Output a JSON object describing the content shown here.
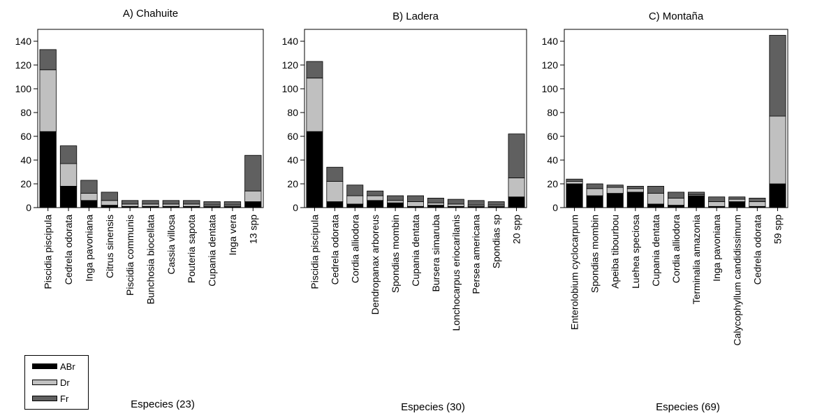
{
  "colors": {
    "ABr": "#000000",
    "Dr": "#c0c0c0",
    "Fr": "#606060"
  },
  "legend": [
    {
      "label": "ABr",
      "color": "#000000"
    },
    {
      "label": "Dr",
      "color": "#c0c0c0"
    },
    {
      "label": "Fr",
      "color": "#606060"
    }
  ],
  "chart_data": [
    {
      "type": "bar",
      "stacked": true,
      "title": "A) Chahuite",
      "xlabel": "Especies (23)",
      "ylabel": "",
      "ylim": [
        0,
        150
      ],
      "yticks": [
        0,
        20,
        40,
        60,
        80,
        100,
        120,
        140
      ],
      "categories": [
        "Piscidia piscipula",
        "Cedrela odorata",
        "Inga pavoniana",
        "Citrus sinensis",
        "Piscidia communis",
        "Bunchosia biocellata",
        "Cassia villosa",
        "Pouteria sapota",
        "Cupania dentata",
        "Inga vera",
        "13 spp"
      ],
      "series": [
        {
          "name": "ABr",
          "values": [
            64,
            18,
            6,
            2,
            1,
            1,
            1,
            1,
            1,
            1,
            5
          ]
        },
        {
          "name": "Dr",
          "values": [
            52,
            19,
            6,
            4,
            2,
            2,
            2,
            2,
            1,
            1,
            9
          ]
        },
        {
          "name": "Fr",
          "values": [
            17,
            15,
            11,
            7,
            3,
            3,
            3,
            3,
            3,
            3,
            30
          ]
        }
      ]
    },
    {
      "type": "bar",
      "stacked": true,
      "title": "B) Ladera",
      "xlabel": "Especies (30)",
      "ylabel": "",
      "ylim": [
        0,
        150
      ],
      "yticks": [
        0,
        20,
        40,
        60,
        80,
        100,
        120,
        140
      ],
      "categories": [
        "Piscidia piscipula",
        "Cedrela odorata",
        "Cordia alliodora",
        "Dendropanax arboreus",
        "Spondias mombin",
        "Cupania dentata",
        "Bursera simaruba",
        "Lonchocarpus eriocarilanis",
        "Persea americana",
        "Spondias sp",
        "20 spp"
      ],
      "series": [
        {
          "name": "ABr",
          "values": [
            64,
            5,
            3,
            6,
            4,
            1,
            2,
            1,
            1,
            1,
            9
          ]
        },
        {
          "name": "Dr",
          "values": [
            45,
            17,
            7,
            4,
            2,
            4,
            2,
            2,
            1,
            1,
            16
          ]
        },
        {
          "name": "Fr",
          "values": [
            14,
            12,
            9,
            4,
            4,
            5,
            4,
            4,
            4,
            3,
            37
          ]
        }
      ]
    },
    {
      "type": "bar",
      "stacked": true,
      "title": "C) Montaña",
      "xlabel": "Especies (69)",
      "ylabel": "",
      "ylim": [
        0,
        150
      ],
      "yticks": [
        0,
        20,
        40,
        60,
        80,
        100,
        120,
        140
      ],
      "categories": [
        "Enterolobium cyclocarpum",
        "Spondias mombin",
        "Apeiba tibourbou",
        "Luehea speciosa",
        "Cupania dentata",
        "Cordia alliodora",
        "Terminalia amazonia",
        "Inga pavoniana",
        "Calycophyllum candidissimum",
        "Cedrela odorata",
        "59 spp"
      ],
      "series": [
        {
          "name": "ABr",
          "values": [
            20,
            10,
            12,
            13,
            3,
            2,
            10,
            1,
            5,
            1,
            20
          ]
        },
        {
          "name": "Dr",
          "values": [
            2,
            6,
            5,
            3,
            9,
            6,
            1,
            4,
            2,
            4,
            57
          ]
        },
        {
          "name": "Fr",
          "values": [
            2,
            4,
            2,
            2,
            6,
            5,
            2,
            4,
            2,
            3,
            68
          ]
        }
      ]
    }
  ]
}
